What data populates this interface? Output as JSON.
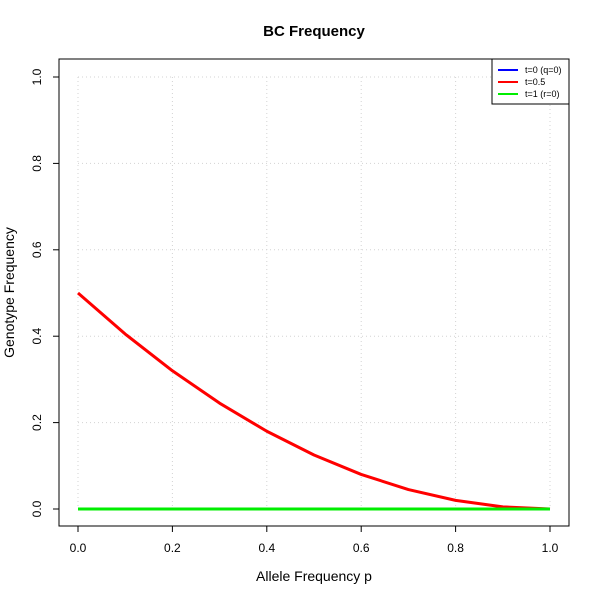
{
  "chart_data": {
    "type": "line",
    "title": "BC Frequency",
    "xlabel": "Allele Frequency p",
    "ylabel": "Genotype Frequency",
    "xlim": [
      0,
      1
    ],
    "ylim": [
      0,
      1
    ],
    "xticks": [
      "0.0",
      "0.2",
      "0.4",
      "0.6",
      "0.8",
      "1.0"
    ],
    "yticks": [
      "0.0",
      "0.2",
      "0.4",
      "0.6",
      "0.8",
      "1.0"
    ],
    "grid": true,
    "legend_position": "top-right",
    "x": [
      0.0,
      0.1,
      0.2,
      0.3,
      0.4,
      0.5,
      0.6,
      0.7,
      0.8,
      0.9,
      1.0
    ],
    "series": [
      {
        "name": "t=0 (q=0)",
        "color": "#0000ff",
        "values": [
          0,
          0,
          0,
          0,
          0,
          0,
          0,
          0,
          0,
          0,
          0
        ]
      },
      {
        "name": "t=0.5",
        "color": "#ff0000",
        "values": [
          0.5,
          0.405,
          0.32,
          0.245,
          0.18,
          0.125,
          0.08,
          0.045,
          0.02,
          0.005,
          0
        ]
      },
      {
        "name": "t=1 (r=0)",
        "color": "#00ee00",
        "values": [
          0,
          0,
          0,
          0,
          0,
          0,
          0,
          0,
          0,
          0,
          0
        ]
      }
    ]
  }
}
